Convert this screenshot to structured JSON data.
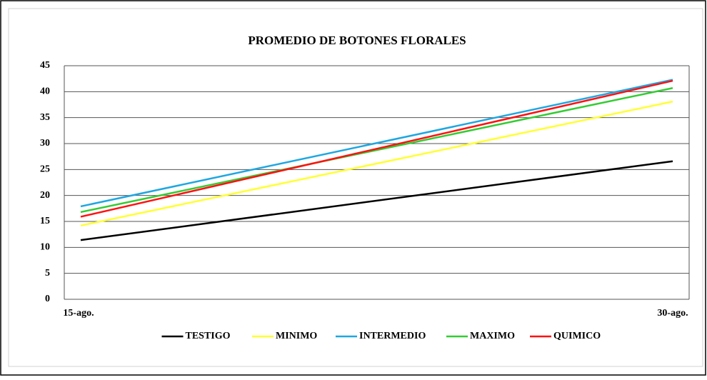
{
  "chart_data": {
    "type": "line",
    "title": "PROMEDIO DE BOTONES FLORALES",
    "categories": [
      "15-ago.",
      "30-ago."
    ],
    "series": [
      {
        "name": "TESTIGO",
        "color": "#000000",
        "values": [
          11.4,
          26.6
        ]
      },
      {
        "name": "MINIMO",
        "color": "#ffff33",
        "values": [
          14.2,
          38.1
        ]
      },
      {
        "name": "INTERMEDIO",
        "color": "#1ea7e1",
        "values": [
          17.9,
          42.3
        ]
      },
      {
        "name": "MAXIMO",
        "color": "#33cc33",
        "values": [
          16.8,
          40.7
        ]
      },
      {
        "name": "QUIMICO",
        "color": "#ff1111",
        "values": [
          15.9,
          42.1
        ]
      }
    ],
    "ylim": [
      0,
      45
    ],
    "yticks": [
      0,
      5,
      10,
      15,
      20,
      25,
      30,
      35,
      40,
      45
    ],
    "grid": true,
    "legend": "bottom"
  }
}
